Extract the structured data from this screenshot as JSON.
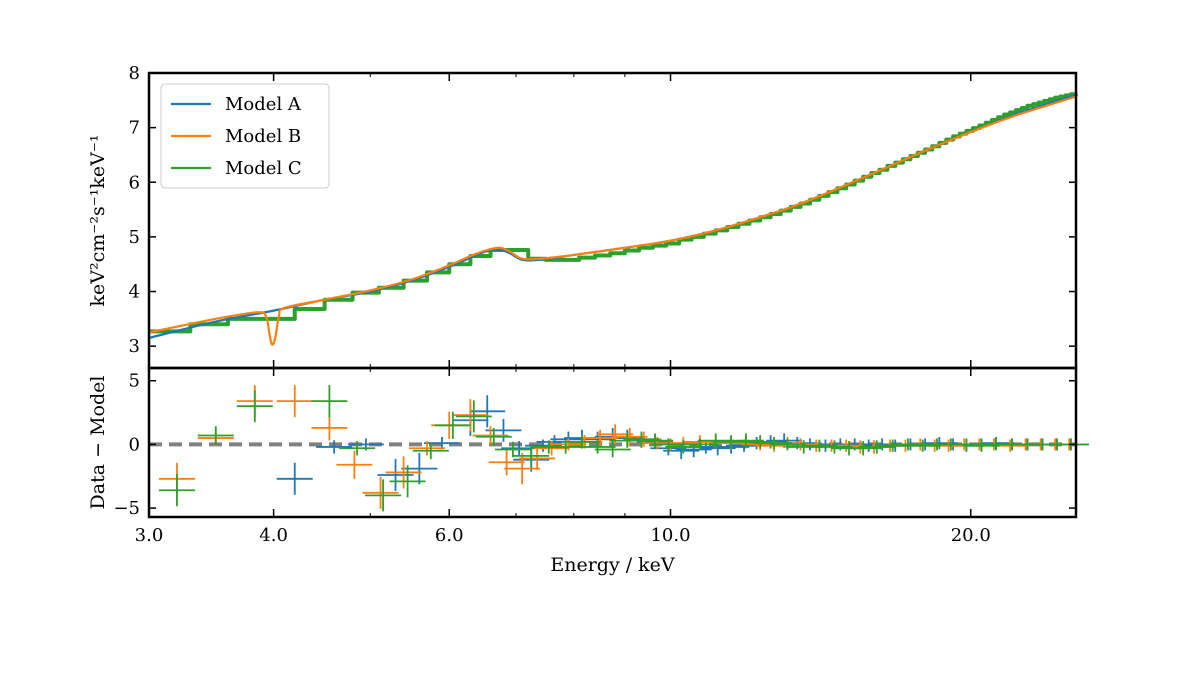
{
  "chart_data": [
    {
      "type": "line",
      "panel": "top",
      "ylabel": "keV²cm⁻²s⁻¹keV⁻¹",
      "ylim": [
        2.6,
        8.0
      ],
      "xlim": [
        3.0,
        25.5
      ],
      "xscale": "log",
      "yticks": [
        3,
        4,
        5,
        6,
        7,
        8
      ],
      "legend_position": "top-left",
      "series": [
        {
          "name": "Model A",
          "color": "#1f77b4",
          "style": "smooth",
          "x": [
            3.0,
            3.5,
            4.0,
            4.5,
            5.0,
            5.5,
            6.0,
            6.3,
            6.55,
            6.75,
            6.9,
            7.1,
            7.4,
            8.0,
            9.0,
            10.0,
            11.0,
            12.0,
            13.0,
            14.0,
            15.0,
            16.0,
            17.0,
            18.0,
            20.0,
            22.0,
            24.0,
            25.5
          ],
          "y": [
            3.15,
            3.45,
            3.65,
            3.85,
            4.0,
            4.2,
            4.45,
            4.62,
            4.74,
            4.76,
            4.7,
            4.58,
            4.58,
            4.67,
            4.8,
            4.93,
            5.1,
            5.3,
            5.5,
            5.72,
            5.95,
            6.17,
            6.38,
            6.58,
            6.92,
            7.22,
            7.45,
            7.6
          ]
        },
        {
          "name": "Model B",
          "color": "#ff7f0e",
          "style": "smooth",
          "x": [
            3.0,
            3.5,
            3.85,
            3.93,
            3.96,
            3.98,
            4.0,
            4.02,
            4.05,
            4.1,
            4.5,
            5.0,
            5.5,
            6.0,
            6.3,
            6.55,
            6.75,
            6.9,
            7.1,
            7.4,
            8.0,
            9.0,
            10.0,
            11.0,
            12.0,
            13.0,
            14.0,
            15.0,
            16.0,
            17.0,
            18.0,
            20.0,
            22.0,
            24.0,
            25.5
          ],
          "y": [
            3.25,
            3.5,
            3.62,
            3.55,
            3.25,
            3.05,
            3.05,
            3.2,
            3.55,
            3.7,
            3.85,
            4.02,
            4.22,
            4.48,
            4.65,
            4.76,
            4.8,
            4.73,
            4.6,
            4.6,
            4.67,
            4.8,
            4.93,
            5.1,
            5.3,
            5.5,
            5.72,
            5.95,
            6.17,
            6.38,
            6.58,
            6.92,
            7.2,
            7.42,
            7.57
          ]
        },
        {
          "name": "Model C",
          "color": "#2ca02c",
          "style": "steps",
          "x": [
            3.0,
            3.3,
            3.6,
            3.9,
            4.2,
            4.5,
            4.8,
            5.1,
            5.4,
            5.7,
            6.0,
            6.3,
            6.6,
            6.9,
            7.2,
            7.5,
            7.8,
            8.1,
            8.4,
            8.7,
            9.0,
            9.3,
            9.6,
            9.9,
            10.2,
            10.5,
            10.8,
            11.1,
            11.4,
            11.7,
            12.0,
            12.3,
            12.6,
            12.9,
            13.2,
            13.5,
            13.8,
            14.1,
            14.4,
            14.7,
            15.0,
            15.3,
            15.6,
            15.9,
            16.2,
            16.5,
            16.8,
            17.1,
            17.4,
            17.7,
            18.0,
            18.3,
            18.6,
            18.9,
            19.2,
            19.5,
            19.8,
            20.1,
            20.4,
            20.7,
            21.0,
            21.3,
            21.6,
            21.9,
            22.2,
            22.5,
            22.8,
            23.1,
            23.4,
            23.7,
            24.0,
            24.3,
            24.6,
            24.9,
            25.2,
            25.5
          ],
          "y": [
            3.27,
            3.4,
            3.5,
            3.5,
            3.68,
            3.85,
            3.98,
            4.07,
            4.2,
            4.35,
            4.5,
            4.65,
            4.76,
            4.76,
            4.6,
            4.58,
            4.58,
            4.62,
            4.66,
            4.7,
            4.75,
            4.8,
            4.84,
            4.88,
            4.95,
            5.0,
            5.06,
            5.12,
            5.18,
            5.24,
            5.3,
            5.36,
            5.42,
            5.48,
            5.55,
            5.61,
            5.68,
            5.75,
            5.82,
            5.89,
            5.96,
            6.03,
            6.1,
            6.17,
            6.23,
            6.3,
            6.36,
            6.42,
            6.48,
            6.54,
            6.6,
            6.66,
            6.72,
            6.78,
            6.84,
            6.89,
            6.94,
            6.99,
            7.04,
            7.09,
            7.14,
            7.19,
            7.24,
            7.28,
            7.32,
            7.36,
            7.4,
            7.43,
            7.46,
            7.49,
            7.52,
            7.55,
            7.57,
            7.59,
            7.61,
            7.62
          ]
        }
      ]
    },
    {
      "type": "scatter",
      "panel": "bottom",
      "xlabel": "Energy / keV",
      "ylabel": "Data − Model",
      "ylim": [
        -5.7,
        6.0
      ],
      "xlim": [
        3.0,
        25.5
      ],
      "xscale": "log",
      "yticks": [
        -5,
        0,
        5
      ],
      "yticklabels": [
        "−5",
        "0",
        "5"
      ],
      "xticks": [
        3.0,
        4.0,
        6.0,
        10.0,
        20.0
      ],
      "xticklabels": [
        "3.0",
        "4.0",
        "6.0",
        "10.0",
        "20.0"
      ],
      "reference_line": {
        "y": 0,
        "style": "dashed",
        "color": "#808080"
      },
      "series": [
        {
          "name": "Model A",
          "color": "#1f77b4",
          "x": [
            4.2,
            4.6,
            4.95,
            5.3,
            5.6,
            5.9,
            6.3,
            6.55,
            6.8,
            7.05,
            7.25,
            7.45,
            7.65,
            7.9,
            8.15,
            8.45,
            8.75,
            9.05,
            9.35,
            9.65,
            9.95,
            10.25,
            10.55,
            10.85,
            11.15,
            11.5,
            11.85,
            12.2,
            12.6,
            13.0,
            13.4,
            13.8,
            14.3,
            14.8,
            15.3,
            15.8,
            16.3,
            16.8,
            17.4,
            18.0,
            18.6,
            19.2,
            19.8,
            20.5,
            21.2,
            22.0,
            22.8,
            23.6,
            24.4,
            25.2
          ],
          "y": [
            -2.7,
            -0.2,
            0.0,
            -2.4,
            -1.9,
            0.1,
            1.9,
            2.6,
            1.1,
            -0.3,
            -1.2,
            -0.1,
            0.2,
            0.4,
            0.5,
            0.4,
            0.6,
            0.5,
            0.3,
            0.2,
            -0.3,
            -0.5,
            -0.4,
            -0.2,
            -0.3,
            -0.2,
            -0.1,
            0.1,
            0.2,
            0.3,
            0.1,
            0.0,
            -0.1,
            0.0,
            0.0,
            -0.1,
            0.0,
            -0.1,
            0.0,
            0.0,
            0.1,
            0.0,
            -0.1,
            0.0,
            0.1,
            0.0,
            0.0,
            0.0,
            0.0,
            0.0
          ]
        },
        {
          "name": "Model B",
          "color": "#ff7f0e",
          "x": [
            3.2,
            3.5,
            3.83,
            4.2,
            4.55,
            4.82,
            5.12,
            5.4,
            5.7,
            6.0,
            6.3,
            6.6,
            6.85,
            7.1,
            7.35,
            7.6,
            7.9,
            8.2,
            8.5,
            8.8,
            9.1,
            9.4,
            9.7,
            10.0,
            10.3,
            10.7,
            11.1,
            11.5,
            11.9,
            12.3,
            12.7,
            13.1,
            13.5,
            14.0,
            14.5,
            15.0,
            15.5,
            16.0,
            16.6,
            17.2,
            17.8,
            18.4,
            19.0,
            19.7,
            20.4,
            21.1,
            21.9,
            22.7,
            23.5,
            24.3,
            25.1
          ],
          "y": [
            -2.7,
            0.5,
            3.4,
            3.4,
            1.3,
            -1.6,
            -3.8,
            -2.2,
            -0.3,
            1.5,
            2.3,
            0.7,
            -1.4,
            -1.9,
            -1.1,
            -0.3,
            0.0,
            0.2,
            0.5,
            0.8,
            0.6,
            0.4,
            0.1,
            0.0,
            0.1,
            0.2,
            0.2,
            0.1,
            0.2,
            0.0,
            -0.1,
            0.1,
            0.0,
            -0.1,
            -0.1,
            -0.1,
            -0.2,
            -0.2,
            -0.1,
            -0.1,
            0.0,
            -0.1,
            -0.1,
            0.0,
            0.0,
            0.0,
            -0.1,
            0.0,
            0.0,
            0.0,
            0.0
          ]
        },
        {
          "name": "Model C",
          "color": "#2ca02c",
          "x": [
            3.2,
            3.5,
            3.83,
            4.55,
            4.85,
            5.15,
            5.45,
            5.75,
            6.05,
            6.35,
            6.65,
            6.95,
            7.25,
            7.55,
            7.85,
            8.15,
            8.45,
            8.75,
            9.05,
            9.35,
            9.65,
            9.95,
            10.3,
            10.7,
            11.1,
            11.5,
            11.9,
            12.3,
            12.7,
            13.1,
            13.6,
            14.1,
            14.6,
            15.1,
            15.6,
            16.1,
            16.7,
            17.3,
            17.9,
            18.5,
            19.1,
            19.8,
            20.5,
            21.2,
            22.0,
            22.8,
            23.6,
            24.4,
            25.2
          ],
          "y": [
            -3.6,
            0.7,
            3.0,
            3.4,
            -0.3,
            -4.0,
            -2.9,
            -0.5,
            1.5,
            2.2,
            0.6,
            -0.4,
            -0.9,
            -0.2,
            -0.2,
            0.2,
            -0.2,
            -0.4,
            0.3,
            0.4,
            0.3,
            0.0,
            -0.2,
            0.0,
            0.3,
            0.2,
            0.3,
            0.2,
            0.1,
            0.0,
            -0.2,
            -0.1,
            -0.2,
            -0.3,
            -0.3,
            -0.2,
            -0.1,
            0.0,
            -0.1,
            0.0,
            0.0,
            0.0,
            -0.1,
            0.0,
            0.0,
            0.0,
            0.0,
            0.0,
            0.0
          ]
        }
      ]
    }
  ]
}
